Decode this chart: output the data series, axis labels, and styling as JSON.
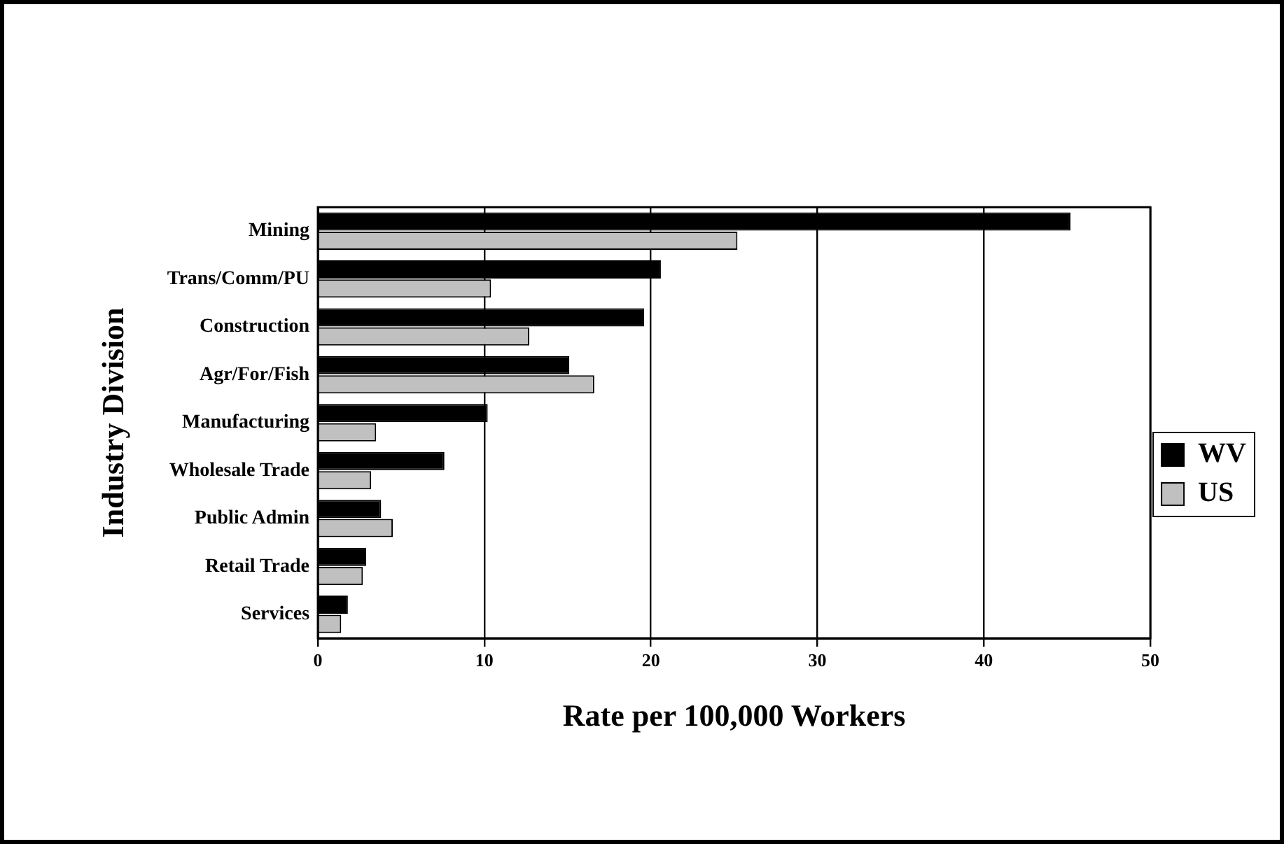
{
  "chart_data": {
    "type": "bar",
    "orientation": "horizontal",
    "xlabel": "Rate per 100,000 Workers",
    "ylabel": "Industry Division",
    "categories": [
      "Mining",
      "Trans/Comm/PU",
      "Construction",
      "Agr/For/Fish",
      "Manufacturing",
      "Wholesale Trade",
      "Public Admin",
      "Retail Trade",
      "Services"
    ],
    "series": [
      {
        "name": "WV",
        "color": "#000000",
        "values": [
          45.2,
          20.6,
          19.6,
          15.1,
          10.2,
          7.6,
          3.8,
          2.9,
          1.8
        ]
      },
      {
        "name": "US",
        "color": "#c0c0c0",
        "values": [
          25.2,
          10.4,
          12.7,
          16.6,
          3.5,
          3.2,
          4.5,
          2.7,
          1.4
        ]
      }
    ],
    "xlim": [
      0,
      50
    ],
    "xticks": [
      0,
      10,
      20,
      30,
      40,
      50
    ],
    "grid": "x",
    "legend": "right"
  }
}
